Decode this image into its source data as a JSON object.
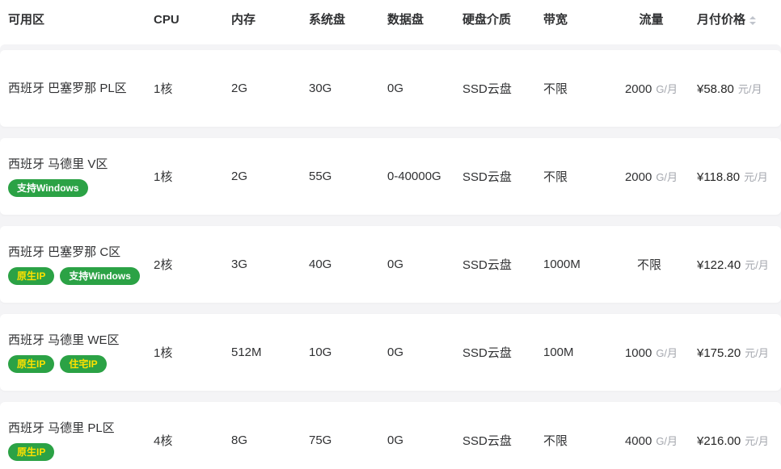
{
  "colors": {
    "badge_green": "#2ba245",
    "badge_text_white": "#ffffff",
    "badge_text_yellow": "#ffe100",
    "unit_gray": "#a3a6ad",
    "header_text": "#303133",
    "row_gap_gray": "#f4f4f6",
    "sort_caret_gray": "#c0c4cc"
  },
  "table": {
    "columns": [
      {
        "label": "可用区"
      },
      {
        "label": "CPU"
      },
      {
        "label": "内存"
      },
      {
        "label": "系统盘"
      },
      {
        "label": "数据盘"
      },
      {
        "label": "硬盘介质"
      },
      {
        "label": "带宽"
      },
      {
        "label": "流量"
      },
      {
        "label": "月付价格",
        "sortable": true,
        "sort_icon": "caret-up-down-icon"
      }
    ],
    "rows": [
      {
        "zone": "西班牙 巴塞罗那 PL区",
        "tags": [],
        "cpu": "1核",
        "memory": "2G",
        "system_disk": "30G",
        "data_disk": "0G",
        "disk_media": "SSD云盘",
        "bandwidth": "不限",
        "traffic_value": "2000",
        "traffic_unit": "G/月",
        "price_value": "¥58.80",
        "price_unit": "元/月"
      },
      {
        "zone": "西班牙 马德里 V区",
        "tags": [
          {
            "label": "支持Windows",
            "style": "white"
          }
        ],
        "cpu": "1核",
        "memory": "2G",
        "system_disk": "55G",
        "data_disk": "0-40000G",
        "disk_media": "SSD云盘",
        "bandwidth": "不限",
        "traffic_value": "2000",
        "traffic_unit": "G/月",
        "price_value": "¥118.80",
        "price_unit": "元/月"
      },
      {
        "zone": "西班牙 巴塞罗那 C区",
        "tags": [
          {
            "label": "原生IP",
            "style": "yellow"
          },
          {
            "label": "支持Windows",
            "style": "white"
          }
        ],
        "cpu": "2核",
        "memory": "3G",
        "system_disk": "40G",
        "data_disk": "0G",
        "disk_media": "SSD云盘",
        "bandwidth": "1000M",
        "traffic_value": "不限",
        "traffic_unit": "",
        "price_value": "¥122.40",
        "price_unit": "元/月"
      },
      {
        "zone": "西班牙 马德里 WE区",
        "tags": [
          {
            "label": "原生IP",
            "style": "yellow"
          },
          {
            "label": "住宅IP",
            "style": "yellow"
          }
        ],
        "cpu": "1核",
        "memory": "512M",
        "system_disk": "10G",
        "data_disk": "0G",
        "disk_media": "SSD云盘",
        "bandwidth": "100M",
        "traffic_value": "1000",
        "traffic_unit": "G/月",
        "price_value": "¥175.20",
        "price_unit": "元/月"
      },
      {
        "zone": "西班牙 马德里 PL区",
        "tags": [
          {
            "label": "原生IP",
            "style": "yellow"
          }
        ],
        "cpu": "4核",
        "memory": "8G",
        "system_disk": "75G",
        "data_disk": "0G",
        "disk_media": "SSD云盘",
        "bandwidth": "不限",
        "traffic_value": "4000",
        "traffic_unit": "G/月",
        "price_value": "¥216.00",
        "price_unit": "元/月"
      }
    ]
  }
}
